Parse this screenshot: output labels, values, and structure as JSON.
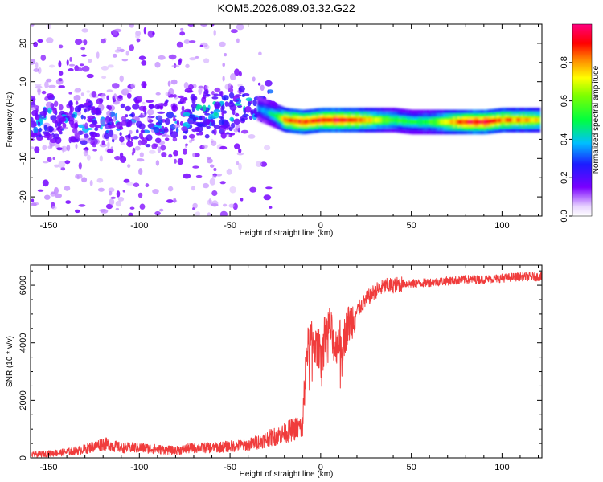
{
  "title": "KOM5.2026.089.03.32.G22",
  "colors": {
    "snr_line": "#f03c3c",
    "axis": "#000000",
    "background": "#ffffff"
  },
  "chart_data": [
    {
      "type": "heatmap",
      "xlabel": "Height of straight line (km)",
      "ylabel": "Frequency (Hz)",
      "xlim": [
        -160,
        122
      ],
      "ylim": [
        -25,
        25
      ],
      "xticks": [
        -150,
        -100,
        -50,
        0,
        50,
        100
      ],
      "yticks": [
        -20,
        -10,
        0,
        10,
        20
      ],
      "colorbar": {
        "label": "Normalized spectral amplitude",
        "range": [
          0.0,
          1.0
        ],
        "ticks": [
          "0.0",
          "0.2",
          "0.4",
          "0.6",
          "0.8"
        ],
        "colormap": "rainbow (violet-blue-cyan-green-yellow-red-magenta)"
      },
      "description_of_content": "noisy scattered violet patches for heights below about -30 km; a single narrow band near 0 Hz from about -30 km to 122 km with amplitude mostly 0.5-1.0",
      "band": {
        "x_start": -30,
        "x_end": 122,
        "center_hz": 0,
        "points": [
          {
            "x": -35,
            "y": 3,
            "amp": 0.35
          },
          {
            "x": -30,
            "y": 2,
            "amp": 0.4
          },
          {
            "x": -25,
            "y": 1,
            "amp": 0.5
          },
          {
            "x": -20,
            "y": 0,
            "amp": 0.85
          },
          {
            "x": -10,
            "y": -0.5,
            "amp": 0.9
          },
          {
            "x": 0,
            "y": 0,
            "amp": 0.9
          },
          {
            "x": 10,
            "y": 0,
            "amp": 0.95
          },
          {
            "x": 20,
            "y": 0,
            "amp": 0.85
          },
          {
            "x": 30,
            "y": 0,
            "amp": 0.7
          },
          {
            "x": 40,
            "y": 0,
            "amp": 0.55
          },
          {
            "x": 50,
            "y": -0.5,
            "amp": 0.5
          },
          {
            "x": 60,
            "y": -0.5,
            "amp": 0.55
          },
          {
            "x": 70,
            "y": -0.5,
            "amp": 0.75
          },
          {
            "x": 80,
            "y": -0.5,
            "amp": 0.95
          },
          {
            "x": 90,
            "y": -0.5,
            "amp": 0.95
          },
          {
            "x": 100,
            "y": 0,
            "amp": 0.85
          },
          {
            "x": 110,
            "y": 0,
            "amp": 0.8
          },
          {
            "x": 120,
            "y": 0,
            "amp": 0.75
          }
        ]
      }
    },
    {
      "type": "line",
      "xlabel": "Height of straight line (km)",
      "ylabel": "SNR (10 * v/v)",
      "xlim": [
        -160,
        122
      ],
      "ylim": [
        0,
        6700
      ],
      "xticks": [
        -150,
        -100,
        -50,
        0,
        50,
        100
      ],
      "yticks": [
        0,
        2000,
        4000,
        6000
      ],
      "series": [
        {
          "x": [
            -160,
            -150,
            -140,
            -130,
            -120,
            -110,
            -100,
            -90,
            -80,
            -70,
            -60,
            -50,
            -40,
            -30,
            -20,
            -15,
            -12,
            -10,
            -8,
            -6,
            -4,
            -2,
            0,
            2,
            5,
            8,
            10,
            12,
            15,
            18,
            20,
            25,
            30,
            35,
            40,
            45,
            50,
            60,
            70,
            80,
            90,
            100,
            110,
            122
          ],
          "y": [
            100,
            150,
            200,
            300,
            500,
            350,
            350,
            300,
            250,
            350,
            350,
            400,
            450,
            650,
            850,
            1000,
            1050,
            1050,
            3500,
            4200,
            4000,
            3800,
            3800,
            4200,
            4600,
            3800,
            4200,
            4000,
            4600,
            4900,
            5100,
            5500,
            5800,
            5950,
            6000,
            6050,
            6050,
            6100,
            6150,
            6200,
            6200,
            6250,
            6300,
            6300
          ]
        }
      ]
    }
  ]
}
